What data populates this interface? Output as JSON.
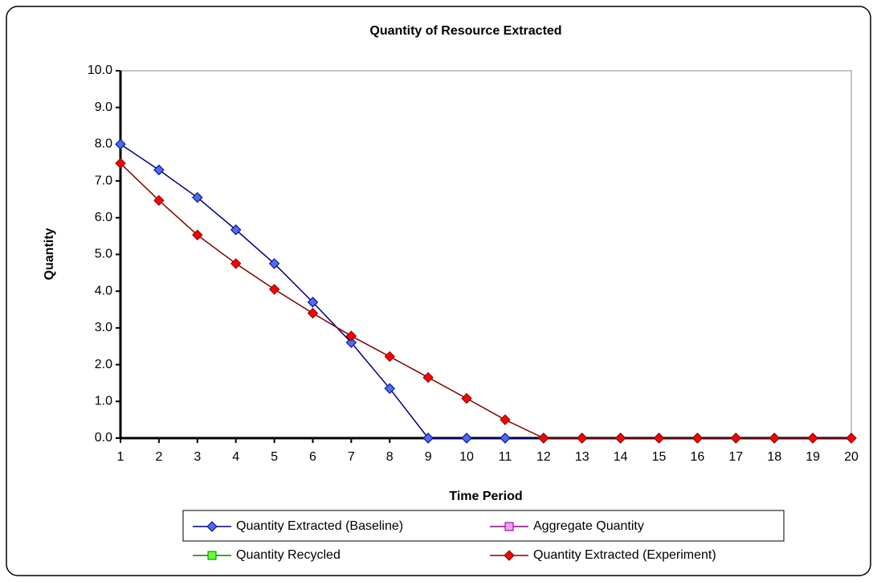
{
  "chart_data": {
    "type": "line",
    "title": "Quantity of Resource Extracted",
    "x_label": "Time Period",
    "y_label": "Quantity",
    "x": [
      1,
      2,
      3,
      4,
      5,
      6,
      7,
      8,
      9,
      10,
      11,
      12,
      13,
      14,
      15,
      16,
      17,
      18,
      19,
      20
    ],
    "xlim": [
      1,
      20
    ],
    "xticks": [
      1,
      2,
      3,
      4,
      5,
      6,
      7,
      8,
      9,
      10,
      11,
      12,
      13,
      14,
      15,
      16,
      17,
      18,
      19,
      20
    ],
    "ylim": [
      0,
      10
    ],
    "yticks": [
      {
        "value": 0,
        "label": "0.0"
      },
      {
        "value": 1,
        "label": "1.0"
      },
      {
        "value": 2,
        "label": "2.0"
      },
      {
        "value": 3,
        "label": "3.0"
      },
      {
        "value": 4,
        "label": "4.0"
      },
      {
        "value": 5,
        "label": "5.0"
      },
      {
        "value": 6,
        "label": "6.0"
      },
      {
        "value": 7,
        "label": "7.0"
      },
      {
        "value": 8,
        "label": "8.0"
      },
      {
        "value": 9,
        "label": "9.0"
      },
      {
        "value": 10,
        "label": "10.0"
      }
    ],
    "grid": false,
    "legend": "bottom",
    "series": [
      {
        "name": "Quantity Extracted (Baseline)",
        "color": "#000080",
        "marker_color": "#4a6cf7",
        "marker": "diamond",
        "values": [
          8.0,
          7.3,
          6.55,
          5.67,
          4.75,
          3.7,
          2.6,
          1.35,
          0,
          0,
          0,
          0,
          0,
          0,
          0,
          0,
          0,
          0,
          0,
          0
        ]
      },
      {
        "name": "Aggregate Quantity",
        "color": "#800080",
        "marker_color": "#ff99ff",
        "marker": "square",
        "values": [
          null,
          null,
          null,
          null,
          null,
          null,
          null,
          null,
          null,
          null,
          null,
          null,
          null,
          null,
          null,
          null,
          null,
          null,
          null,
          null
        ]
      },
      {
        "name": "Quantity Recycled",
        "color": "#008000",
        "marker_color": "#66ff33",
        "marker": "square",
        "values": [
          null,
          null,
          null,
          null,
          null,
          null,
          null,
          null,
          null,
          null,
          null,
          null,
          null,
          null,
          null,
          null,
          null,
          null,
          null,
          null
        ]
      },
      {
        "name": "Quantity Extracted (Experiment)",
        "color": "#800000",
        "marker_color": "#ff0000",
        "marker": "diamond",
        "values": [
          7.48,
          6.47,
          5.53,
          4.75,
          4.05,
          3.4,
          2.78,
          2.22,
          1.65,
          1.08,
          0.5,
          0,
          0,
          0,
          0,
          0,
          0,
          0,
          0,
          0
        ]
      }
    ]
  }
}
